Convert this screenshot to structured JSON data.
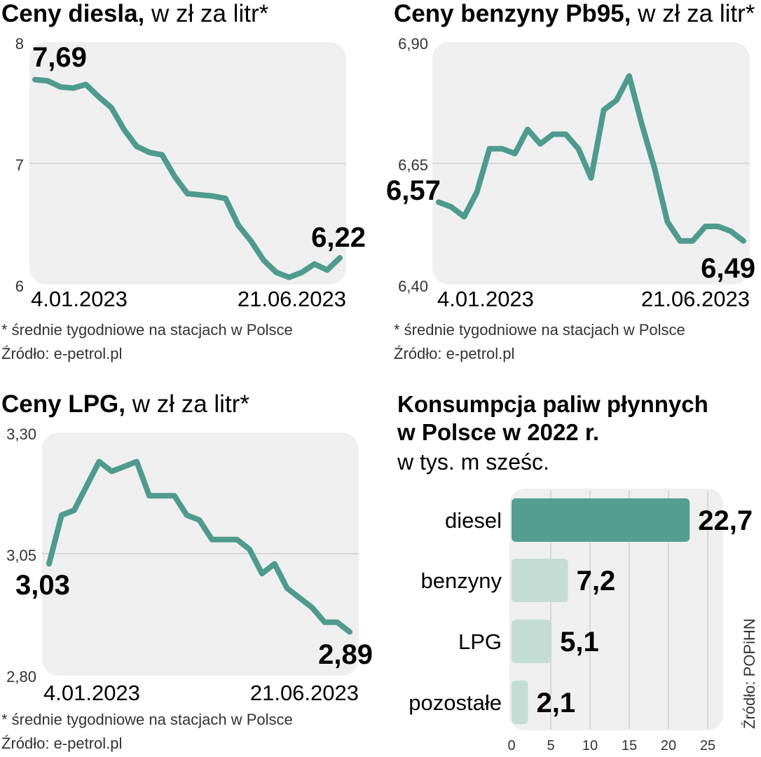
{
  "charts": {
    "diesel": {
      "title": "Ceny diesla,",
      "title_suffix": " w zł za litr*",
      "y_ticks": [
        "8",
        "7",
        "6"
      ],
      "x_start_label": "4.01.2023",
      "x_end_label": "21.06.2023",
      "start_value_label": "7,69",
      "end_value_label": "6,22",
      "footnote": "* średnie tygodniowe na stacjach w Polsce",
      "source": "Źródło: e-petrol.pl"
    },
    "pb95": {
      "title": "Ceny benzyny Pb95,",
      "title_suffix": " w zł za litr*",
      "y_ticks": [
        "6,90",
        "6,65",
        "6,40"
      ],
      "x_start_label": "4.01.2023",
      "x_end_label": "21.06.2023",
      "start_value_label": "6,57",
      "end_value_label": "6,49",
      "footnote": "* średnie tygodniowe na stacjach w Polsce",
      "source": "Źródło: e-petrol.pl"
    },
    "lpg": {
      "title": "Ceny LPG,",
      "title_suffix": " w zł za litr*",
      "y_ticks": [
        "3,30",
        "3,05",
        "2,80"
      ],
      "x_start_label": "4.01.2023",
      "x_end_label": "21.06.2023",
      "start_value_label": "3,03",
      "end_value_label": "2,89",
      "footnote": "* średnie tygodniowe na stacjach w Polsce",
      "source": "Źródło: e-petrol.pl"
    },
    "consumption": {
      "title_line1": "Konsumpcja paliw płynnych",
      "title_line2": "w Polsce w 2022 r.",
      "subtitle": "w tys. m sześc.",
      "source_vertical": "Źródło: POPiHN",
      "x_ticks": [
        "0",
        "5",
        "10",
        "15",
        "20",
        "25"
      ],
      "bar_labels": [
        "diesel",
        "benzyny",
        "LPG",
        "pozostałe"
      ],
      "value_labels": [
        "22,7",
        "7,2",
        "5,1",
        "2,1"
      ]
    }
  },
  "colors": {
    "line": "#4e9b8e",
    "bar_main": "#539e90",
    "bar_light": "#c3ddd5",
    "panel_bg": "#efefef",
    "grid": "#cfcfcf",
    "text": "#1a1a1a"
  },
  "chart_data": [
    {
      "type": "line",
      "title": "Ceny diesla, w zł za litr*",
      "ylim": [
        6,
        8
      ],
      "y_ticks": [
        8,
        7,
        6
      ],
      "x_range": [
        "4.01.2023",
        "21.06.2023"
      ],
      "series": [
        {
          "values": [
            7.69,
            7.68,
            7.63,
            7.62,
            7.65,
            7.55,
            7.46,
            7.28,
            7.14,
            7.09,
            7.07,
            6.89,
            6.75,
            6.74,
            6.73,
            6.71,
            6.49,
            6.36,
            6.2,
            6.1,
            6.06,
            6.1,
            6.17,
            6.12,
            6.22
          ]
        }
      ]
    },
    {
      "type": "line",
      "title": "Ceny benzyny Pb95, w zł za litr*",
      "ylim": [
        6.4,
        6.9
      ],
      "y_ticks": [
        6.9,
        6.65,
        6.4
      ],
      "x_range": [
        "4.01.2023",
        "21.06.2023"
      ],
      "series": [
        {
          "values": [
            6.57,
            6.56,
            6.54,
            6.59,
            6.68,
            6.68,
            6.67,
            6.72,
            6.69,
            6.71,
            6.71,
            6.68,
            6.62,
            6.76,
            6.78,
            6.83,
            6.73,
            6.64,
            6.53,
            6.49,
            6.49,
            6.52,
            6.52,
            6.51,
            6.49
          ]
        }
      ]
    },
    {
      "type": "line",
      "title": "Ceny LPG, w zł za litr*",
      "ylim": [
        2.8,
        3.3
      ],
      "y_ticks": [
        3.3,
        3.05,
        2.8
      ],
      "x_range": [
        "4.01.2023",
        "21.06.2023"
      ],
      "series": [
        {
          "values": [
            3.03,
            3.13,
            3.14,
            3.19,
            3.24,
            3.22,
            3.23,
            3.24,
            3.17,
            3.17,
            3.17,
            3.13,
            3.12,
            3.08,
            3.08,
            3.08,
            3.06,
            3.01,
            3.03,
            2.98,
            2.96,
            2.94,
            2.91,
            2.91,
            2.89
          ]
        }
      ]
    },
    {
      "type": "bar",
      "title": "Konsumpcja paliw płynnych w Polsce w 2022 r.",
      "subtitle": "w tys. m sześc.",
      "orientation": "horizontal",
      "categories": [
        "diesel",
        "benzyny",
        "LPG",
        "pozostałe"
      ],
      "values": [
        22.7,
        7.2,
        5.1,
        2.1
      ],
      "xlim": [
        0,
        25
      ],
      "x_ticks": [
        0,
        5,
        10,
        15,
        20,
        25
      ]
    }
  ]
}
